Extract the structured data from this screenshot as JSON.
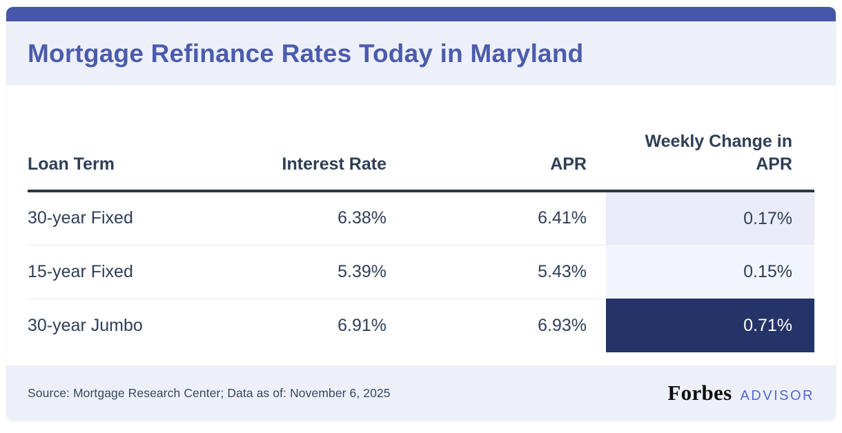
{
  "colors": {
    "accent-bar": "#4656a8",
    "title": "#4b5cae",
    "header-bg": "#edf0f8",
    "text": "#2f3e55",
    "table-border": "#2d3643",
    "row-divider": "#e9e9e9",
    "wc-strong": "#e9ebf8",
    "wc-soft": "#f2f5fc",
    "wc-dark-bg": "#243468",
    "wc-dark-text": "#ffffff",
    "footer-bg": "#edf0f8",
    "forbes": "#0d0d0d",
    "advisor": "#4d68d9"
  },
  "header": {
    "title": "Mortgage Refinance Rates Today in Maryland"
  },
  "table": {
    "columns": [
      "Loan Term",
      "Interest Rate",
      "APR",
      "Weekly Change in APR"
    ],
    "rows": [
      {
        "term": "30-year Fixed",
        "interest_rate": "6.38%",
        "apr": "6.41%",
        "weekly_change": "0.17%"
      },
      {
        "term": "15-year Fixed",
        "interest_rate": "5.39%",
        "apr": "5.43%",
        "weekly_change": "0.15%"
      },
      {
        "term": "30-year Jumbo",
        "interest_rate": "6.91%",
        "apr": "6.93%",
        "weekly_change": "0.71%"
      }
    ]
  },
  "footer": {
    "source": "Source: Mortgage Research Center; Data as of: November 6, 2025",
    "brand": "Forbes",
    "brand_suffix": "ADVISOR"
  },
  "chart_data": {
    "type": "table",
    "title": "Mortgage Refinance Rates Today in Maryland",
    "columns": [
      "Loan Term",
      "Interest Rate",
      "APR",
      "Weekly Change in APR"
    ],
    "rows": [
      [
        "30-year Fixed",
        "6.38%",
        "6.41%",
        "0.17%"
      ],
      [
        "15-year Fixed",
        "5.39%",
        "5.43%",
        "0.15%"
      ],
      [
        "30-year Jumbo",
        "6.91%",
        "6.93%",
        "0.71%"
      ]
    ],
    "notes": "Weekly Change in APR column is highlighted; largest change (0.71%) shown on dark navy cell, smaller changes on light lavender cells",
    "source": "Mortgage Research Center",
    "data_as_of": "November 6, 2025"
  }
}
